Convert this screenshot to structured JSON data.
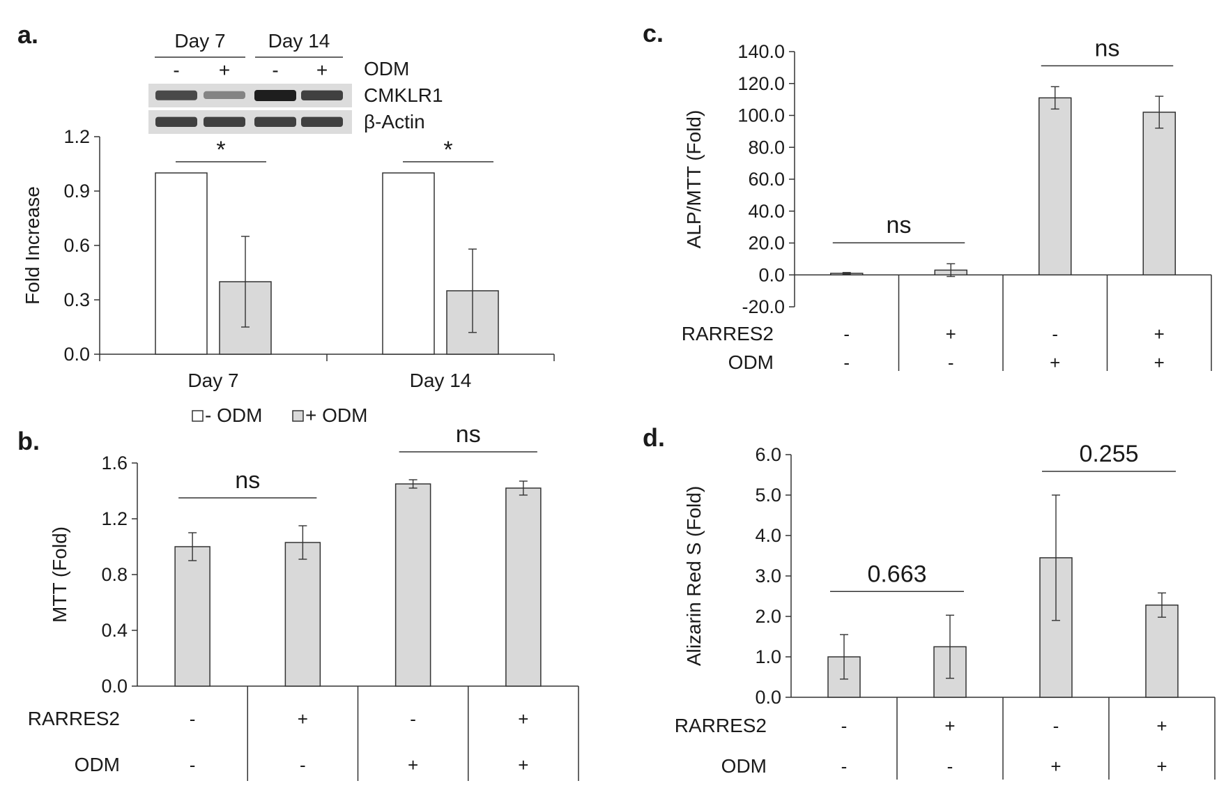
{
  "figure": {
    "legend": {
      "items": [
        {
          "label": "- ODM",
          "color": "#ffffff"
        },
        {
          "label": "+ ODM",
          "color": "#d9d9d9"
        }
      ]
    },
    "colors": {
      "bar_fill": "#d9d9d9",
      "open_fill": "#ffffff",
      "stroke": "#333333",
      "blot_band": "#3a3a3a"
    },
    "western_blot": {
      "groups": [
        "Day 7",
        "Day 14"
      ],
      "lane_signs": [
        "-",
        "+",
        "-",
        "+"
      ],
      "treatment_label": "ODM",
      "rows": [
        {
          "label": "CMKLR1",
          "intensity": [
            0.75,
            0.4,
            1.0,
            0.8
          ]
        },
        {
          "label": "β-Actin",
          "intensity": [
            0.8,
            0.8,
            0.8,
            0.8
          ]
        }
      ]
    }
  },
  "chart_data": [
    {
      "id": "a",
      "panel_label": "a.",
      "type": "bar",
      "ylabel": "Fold Increase",
      "ylim": [
        0,
        1.2
      ],
      "yticks": [
        "0.0",
        "0.3",
        "0.6",
        "0.9",
        "1.2"
      ],
      "categories": [
        "Day 7",
        "Day 14"
      ],
      "series": [
        {
          "name": "- ODM",
          "values": [
            1.0,
            1.0
          ],
          "errors": [
            0,
            0
          ]
        },
        {
          "name": "+ ODM",
          "values": [
            0.4,
            0.35
          ],
          "errors": [
            0.25,
            0.23
          ]
        }
      ],
      "significance": [
        {
          "label": "*",
          "between": [
            0,
            1
          ],
          "group": 0
        },
        {
          "label": "*",
          "between": [
            0,
            1
          ],
          "group": 1
        }
      ]
    },
    {
      "id": "b",
      "panel_label": "b.",
      "type": "bar",
      "ylabel": "MTT (Fold)",
      "ylim": [
        0,
        1.6
      ],
      "yticks": [
        "0.0",
        "0.4",
        "0.8",
        "1.2",
        "1.6"
      ],
      "values": [
        1.0,
        1.03,
        1.45,
        1.42
      ],
      "errors": [
        0.1,
        0.12,
        0.03,
        0.05
      ],
      "conditions": [
        {
          "label": "RARRES2",
          "signs": [
            "-",
            "+",
            "-",
            "+"
          ]
        },
        {
          "label": "ODM",
          "signs": [
            "-",
            "-",
            "+",
            "+"
          ]
        }
      ],
      "significance": [
        {
          "label": "ns",
          "between": [
            0,
            1
          ]
        },
        {
          "label": "ns",
          "between": [
            2,
            3
          ]
        }
      ]
    },
    {
      "id": "c",
      "panel_label": "c.",
      "type": "bar",
      "ylabel": "ALP/MTT (Fold)",
      "ylim": [
        -20,
        140
      ],
      "yticks": [
        "-20.0",
        "0.0",
        "20.0",
        "40.0",
        "60.0",
        "80.0",
        "100.0",
        "120.0",
        "140.0"
      ],
      "values": [
        1.0,
        3.0,
        111.0,
        102.0
      ],
      "errors": [
        0.5,
        4.0,
        7.0,
        10.0
      ],
      "conditions": [
        {
          "label": "RARRES2",
          "signs": [
            "-",
            "+",
            "-",
            "+"
          ]
        },
        {
          "label": "ODM",
          "signs": [
            "-",
            "-",
            "+",
            "+"
          ]
        }
      ],
      "significance": [
        {
          "label": "ns",
          "between": [
            0,
            1
          ]
        },
        {
          "label": "ns",
          "between": [
            2,
            3
          ]
        }
      ]
    },
    {
      "id": "d",
      "panel_label": "d.",
      "type": "bar",
      "ylabel": "Alizarin Red S (Fold)",
      "ylim": [
        0,
        6
      ],
      "yticks": [
        "0.0",
        "1.0",
        "2.0",
        "3.0",
        "4.0",
        "5.0",
        "6.0"
      ],
      "values": [
        1.0,
        1.25,
        3.45,
        2.28
      ],
      "errors": [
        0.55,
        0.78,
        1.55,
        0.3
      ],
      "conditions": [
        {
          "label": "RARRES2",
          "signs": [
            "-",
            "+",
            "-",
            "+"
          ]
        },
        {
          "label": "ODM",
          "signs": [
            "-",
            "-",
            "+",
            "+"
          ]
        }
      ],
      "significance": [
        {
          "label": "0.663",
          "between": [
            0,
            1
          ]
        },
        {
          "label": "0.255",
          "between": [
            2,
            3
          ]
        }
      ]
    }
  ]
}
